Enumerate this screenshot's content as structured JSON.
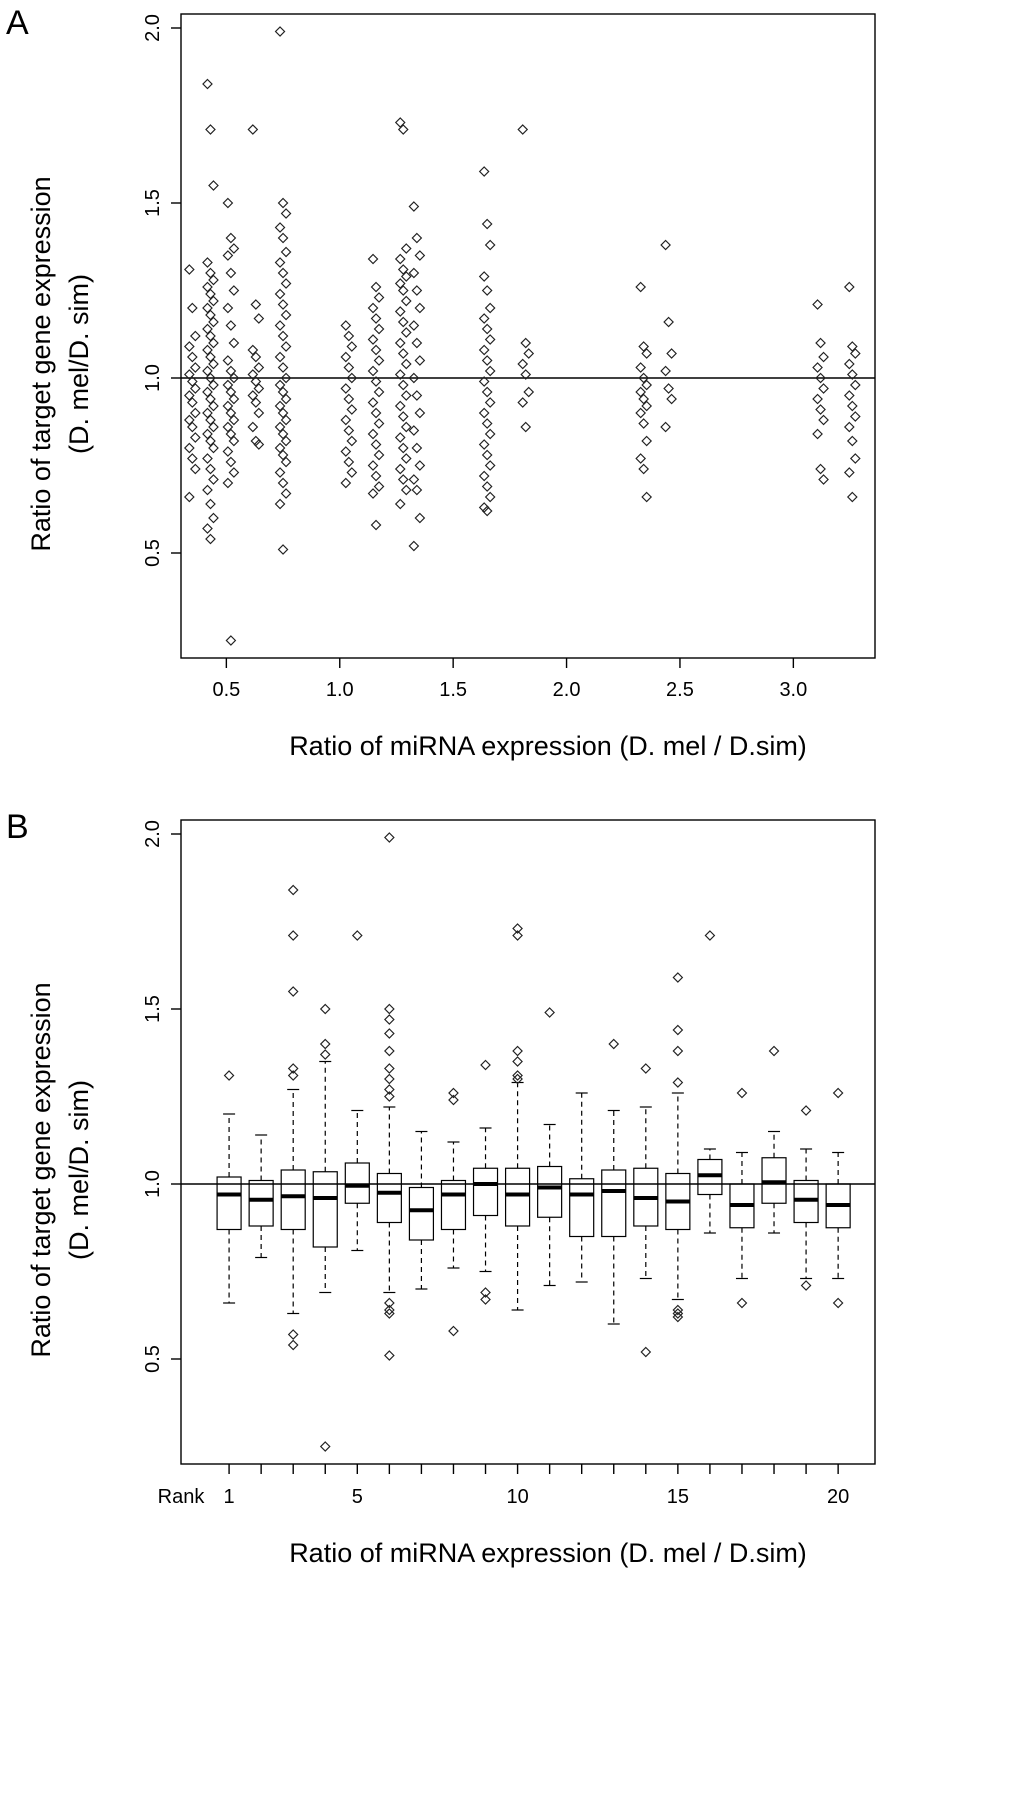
{
  "chart_data": [
    {
      "panel_label": "A",
      "type": "scatter",
      "xlabel": "Ratio of miRNA expression (D. mel / D.sim)",
      "ylabel_line1": "Ratio of target gene expression",
      "ylabel_line2": "(D. mel/D. sim)",
      "xlim": [
        0.3,
        3.36
      ],
      "ylim": [
        0.2,
        2.04
      ],
      "xticks": [
        0.5,
        1.0,
        1.5,
        2.0,
        2.5,
        3.0
      ],
      "xtick_labels": [
        "0.5",
        "1.0",
        "1.5",
        "2.0",
        "2.5",
        "3.0"
      ],
      "yticks": [
        0.5,
        1.0,
        1.5,
        2.0
      ],
      "ytick_labels": [
        "0.5",
        "1.0",
        "1.5",
        "2.0"
      ],
      "reference_line_y": 1.0,
      "marker": "open-diamond",
      "grid": false,
      "groups": [
        {
          "x": 0.35,
          "y": [
            1.31,
            1.2,
            1.12,
            1.09,
            1.06,
            1.03,
            1.01,
            0.99,
            0.97,
            0.95,
            0.93,
            0.9,
            0.88,
            0.86,
            0.83,
            0.8,
            0.77,
            0.74,
            0.66
          ]
        },
        {
          "x": 0.43,
          "y": [
            1.84,
            1.71,
            1.55,
            1.33,
            1.3,
            1.28,
            1.26,
            1.24,
            1.22,
            1.2,
            1.18,
            1.16,
            1.14,
            1.12,
            1.1,
            1.08,
            1.06,
            1.04,
            1.02,
            1.0,
            0.98,
            0.96,
            0.94,
            0.92,
            0.9,
            0.88,
            0.86,
            0.84,
            0.82,
            0.8,
            0.77,
            0.74,
            0.71,
            0.68,
            0.64,
            0.6,
            0.57,
            0.54
          ]
        },
        {
          "x": 0.52,
          "y": [
            1.5,
            1.4,
            1.37,
            1.35,
            1.3,
            1.25,
            1.2,
            1.15,
            1.1,
            1.05,
            1.02,
            1.0,
            0.98,
            0.96,
            0.94,
            0.92,
            0.9,
            0.88,
            0.86,
            0.84,
            0.82,
            0.79,
            0.76,
            0.73,
            0.7,
            0.25
          ]
        },
        {
          "x": 0.63,
          "y": [
            1.71,
            1.21,
            1.17,
            1.08,
            1.06,
            1.03,
            1.01,
            0.99,
            0.97,
            0.95,
            0.93,
            0.9,
            0.86,
            0.82,
            0.81
          ]
        },
        {
          "x": 0.75,
          "y": [
            1.99,
            1.5,
            1.47,
            1.43,
            1.4,
            1.36,
            1.33,
            1.3,
            1.27,
            1.24,
            1.21,
            1.18,
            1.15,
            1.12,
            1.09,
            1.06,
            1.03,
            1.0,
            0.98,
            0.96,
            0.94,
            0.92,
            0.9,
            0.88,
            0.86,
            0.84,
            0.82,
            0.8,
            0.78,
            0.76,
            0.73,
            0.7,
            0.67,
            0.64,
            0.51
          ]
        },
        {
          "x": 1.04,
          "y": [
            1.15,
            1.12,
            1.09,
            1.06,
            1.03,
            1.0,
            0.97,
            0.94,
            0.91,
            0.88,
            0.85,
            0.82,
            0.79,
            0.76,
            0.73,
            0.7
          ]
        },
        {
          "x": 1.16,
          "y": [
            1.34,
            1.26,
            1.23,
            1.2,
            1.17,
            1.14,
            1.11,
            1.08,
            1.05,
            1.02,
            0.99,
            0.96,
            0.93,
            0.9,
            0.87,
            0.84,
            0.81,
            0.78,
            0.75,
            0.72,
            0.69,
            0.67,
            0.58
          ]
        },
        {
          "x": 1.28,
          "y": [
            1.73,
            1.71,
            1.37,
            1.34,
            1.31,
            1.29,
            1.27,
            1.25,
            1.22,
            1.19,
            1.16,
            1.13,
            1.1,
            1.07,
            1.04,
            1.01,
            0.98,
            0.95,
            0.92,
            0.89,
            0.86,
            0.83,
            0.8,
            0.77,
            0.74,
            0.71,
            0.68,
            0.64
          ]
        },
        {
          "x": 1.34,
          "y": [
            1.49,
            1.4,
            1.35,
            1.3,
            1.25,
            1.2,
            1.15,
            1.1,
            1.05,
            1.0,
            0.95,
            0.9,
            0.85,
            0.8,
            0.75,
            0.71,
            0.68,
            0.6,
            0.52
          ]
        },
        {
          "x": 1.65,
          "y": [
            1.59,
            1.44,
            1.38,
            1.29,
            1.25,
            1.2,
            1.17,
            1.14,
            1.11,
            1.08,
            1.05,
            1.02,
            0.99,
            0.96,
            0.93,
            0.9,
            0.87,
            0.84,
            0.81,
            0.78,
            0.75,
            0.72,
            0.69,
            0.66,
            0.63,
            0.62
          ]
        },
        {
          "x": 1.82,
          "y": [
            1.71,
            1.1,
            1.07,
            1.04,
            1.01,
            0.96,
            0.93,
            0.86
          ]
        },
        {
          "x": 2.34,
          "y": [
            1.26,
            1.09,
            1.07,
            1.03,
            1.0,
            0.98,
            0.96,
            0.94,
            0.92,
            0.9,
            0.87,
            0.82,
            0.77,
            0.74,
            0.66
          ]
        },
        {
          "x": 2.45,
          "y": [
            1.38,
            1.16,
            1.07,
            1.02,
            0.97,
            0.94,
            0.86
          ]
        },
        {
          "x": 3.12,
          "y": [
            1.21,
            1.1,
            1.06,
            1.03,
            1.0,
            0.97,
            0.94,
            0.91,
            0.88,
            0.84,
            0.74,
            0.71
          ]
        },
        {
          "x": 3.26,
          "y": [
            1.26,
            1.09,
            1.07,
            1.04,
            1.01,
            0.98,
            0.95,
            0.92,
            0.89,
            0.86,
            0.82,
            0.77,
            0.73,
            0.66
          ]
        }
      ]
    },
    {
      "panel_label": "B",
      "type": "box",
      "xlabel": "Ratio of miRNA expression (D. mel / D.sim)",
      "ylabel_line1": "Ratio of target gene expression",
      "ylabel_line2": "(D. mel/D. sim)",
      "xlim": [
        -0.5,
        21.15
      ],
      "ylim": [
        0.2,
        2.04
      ],
      "rank_prefix": "Rank",
      "xtick_positions": [
        1,
        2,
        3,
        4,
        5,
        6,
        7,
        8,
        9,
        10,
        11,
        12,
        13,
        14,
        15,
        16,
        17,
        18,
        19,
        20
      ],
      "xtick_labels": {
        "1": "1",
        "5": "5",
        "10": "10",
        "15": "15",
        "20": "20"
      },
      "yticks": [
        0.5,
        1.0,
        1.5,
        2.0
      ],
      "ytick_labels": [
        "0.5",
        "1.0",
        "1.5",
        "2.0"
      ],
      "reference_line_y": 1.0,
      "grid": false,
      "boxes": [
        {
          "rank": 1,
          "whisker_low": 0.66,
          "q1": 0.87,
          "median": 0.97,
          "q3": 1.02,
          "whisker_high": 1.2,
          "outliers": [
            1.31
          ]
        },
        {
          "rank": 2,
          "whisker_low": 0.79,
          "q1": 0.88,
          "median": 0.955,
          "q3": 1.01,
          "whisker_high": 1.14,
          "outliers": []
        },
        {
          "rank": 3,
          "whisker_low": 0.63,
          "q1": 0.87,
          "median": 0.965,
          "q3": 1.04,
          "whisker_high": 1.27,
          "outliers": [
            1.84,
            1.71,
            1.55,
            1.33,
            1.31,
            0.57,
            0.54
          ]
        },
        {
          "rank": 4,
          "whisker_low": 0.69,
          "q1": 0.82,
          "median": 0.96,
          "q3": 1.035,
          "whisker_high": 1.35,
          "outliers": [
            1.5,
            1.4,
            1.37,
            0.25
          ]
        },
        {
          "rank": 5,
          "whisker_low": 0.81,
          "q1": 0.945,
          "median": 0.995,
          "q3": 1.06,
          "whisker_high": 1.21,
          "outliers": [
            1.71
          ]
        },
        {
          "rank": 6,
          "whisker_low": 0.69,
          "q1": 0.89,
          "median": 0.975,
          "q3": 1.03,
          "whisker_high": 1.22,
          "outliers": [
            1.99,
            1.5,
            1.47,
            1.43,
            1.38,
            1.33,
            1.3,
            1.27,
            1.25,
            0.66,
            0.64,
            0.63,
            0.51
          ]
        },
        {
          "rank": 7,
          "whisker_low": 0.7,
          "q1": 0.84,
          "median": 0.925,
          "q3": 0.99,
          "whisker_high": 1.15,
          "outliers": []
        },
        {
          "rank": 8,
          "whisker_low": 0.76,
          "q1": 0.87,
          "median": 0.97,
          "q3": 1.01,
          "whisker_high": 1.12,
          "outliers": [
            1.26,
            1.24,
            0.58
          ]
        },
        {
          "rank": 9,
          "whisker_low": 0.75,
          "q1": 0.91,
          "median": 1.0,
          "q3": 1.045,
          "whisker_high": 1.16,
          "outliers": [
            1.34,
            0.69,
            0.67
          ]
        },
        {
          "rank": 10,
          "whisker_low": 0.64,
          "q1": 0.88,
          "median": 0.97,
          "q3": 1.045,
          "whisker_high": 1.29,
          "outliers": [
            1.73,
            1.71,
            1.38,
            1.35,
            1.31,
            1.3
          ]
        },
        {
          "rank": 11,
          "whisker_low": 0.71,
          "q1": 0.905,
          "median": 0.99,
          "q3": 1.05,
          "whisker_high": 1.17,
          "outliers": [
            1.49
          ]
        },
        {
          "rank": 12,
          "whisker_low": 0.72,
          "q1": 0.85,
          "median": 0.97,
          "q3": 1.015,
          "whisker_high": 1.26,
          "outliers": []
        },
        {
          "rank": 13,
          "whisker_low": 0.6,
          "q1": 0.85,
          "median": 0.98,
          "q3": 1.04,
          "whisker_high": 1.21,
          "outliers": [
            1.4
          ]
        },
        {
          "rank": 14,
          "whisker_low": 0.73,
          "q1": 0.88,
          "median": 0.96,
          "q3": 1.045,
          "whisker_high": 1.22,
          "outliers": [
            1.33,
            0.52
          ]
        },
        {
          "rank": 15,
          "whisker_low": 0.67,
          "q1": 0.87,
          "median": 0.95,
          "q3": 1.03,
          "whisker_high": 1.26,
          "outliers": [
            1.59,
            1.44,
            1.38,
            1.29,
            0.64,
            0.63,
            0.62
          ]
        },
        {
          "rank": 16,
          "whisker_low": 0.86,
          "q1": 0.97,
          "median": 1.025,
          "q3": 1.07,
          "whisker_high": 1.1,
          "outliers": [
            1.71
          ]
        },
        {
          "rank": 17,
          "whisker_low": 0.73,
          "q1": 0.875,
          "median": 0.94,
          "q3": 1.0,
          "whisker_high": 1.09,
          "outliers": [
            1.26,
            0.66
          ]
        },
        {
          "rank": 18,
          "whisker_low": 0.86,
          "q1": 0.945,
          "median": 1.005,
          "q3": 1.075,
          "whisker_high": 1.15,
          "outliers": [
            1.38
          ]
        },
        {
          "rank": 19,
          "whisker_low": 0.73,
          "q1": 0.89,
          "median": 0.955,
          "q3": 1.01,
          "whisker_high": 1.1,
          "outliers": [
            1.21,
            0.71
          ]
        },
        {
          "rank": 20,
          "whisker_low": 0.73,
          "q1": 0.875,
          "median": 0.94,
          "q3": 1.0,
          "whisker_high": 1.09,
          "outliers": [
            1.26,
            0.66
          ]
        }
      ]
    }
  ]
}
